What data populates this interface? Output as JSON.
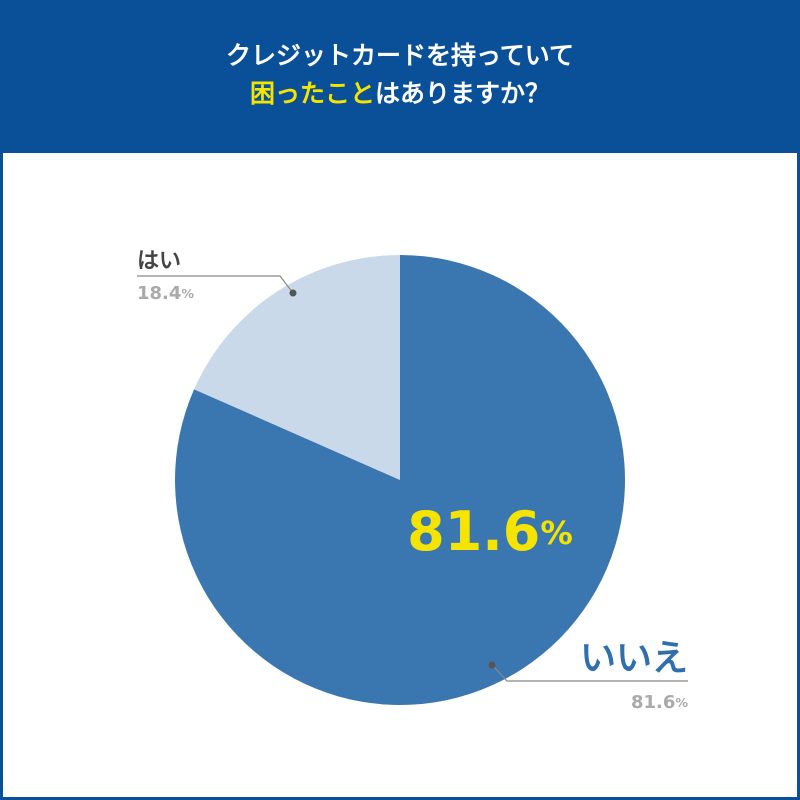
{
  "chart_data": {
    "type": "pie",
    "title_lines": [
      [
        "クレジットカードを持っていて"
      ],
      [
        "困ったこと",
        "はありますか？"
      ]
    ],
    "categories": [
      "はい",
      "いいえ"
    ],
    "values": [
      18.4,
      81.6
    ],
    "value_labels": [
      "18.4%",
      "81.6%"
    ],
    "colors": [
      "#c9d9ea",
      "#3a76b0"
    ],
    "highlight": 1
  }
}
